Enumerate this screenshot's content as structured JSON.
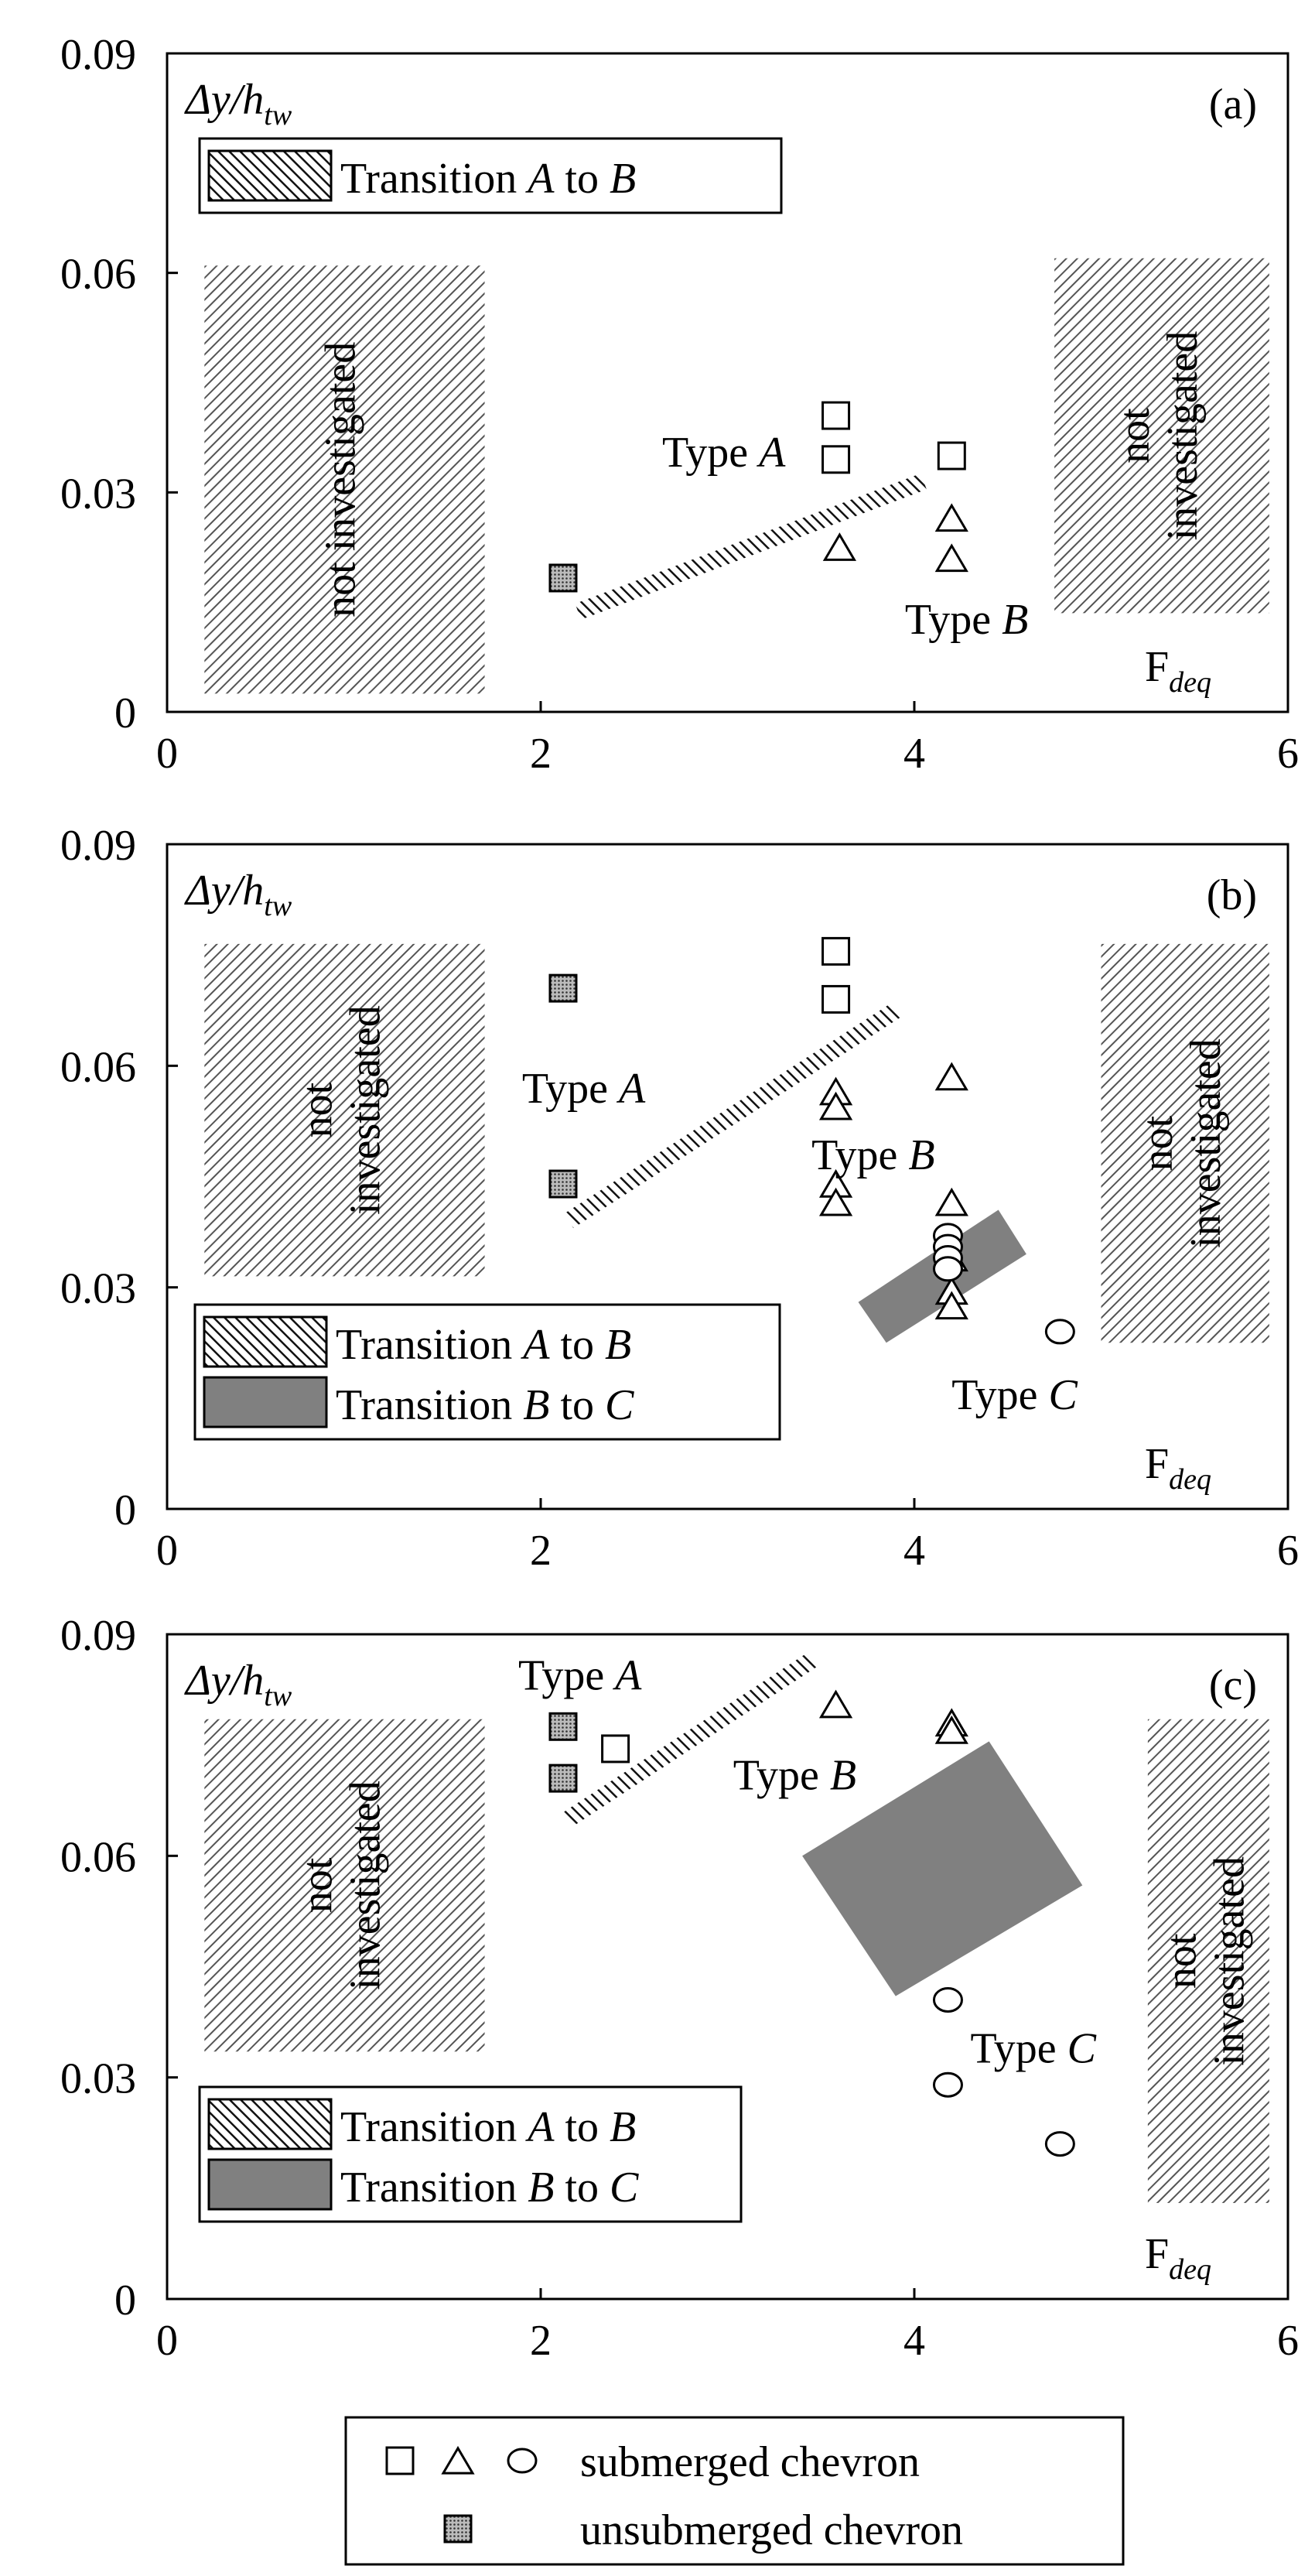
{
  "chart_data": [
    {
      "type": "scatter",
      "panel_label": "(a)",
      "ylabel": {
        "base": "Δy/h",
        "sub": "tw"
      },
      "xlabel": {
        "base": "F",
        "sub": "deq"
      },
      "xlim": [
        0,
        6
      ],
      "ylim": [
        0,
        0.09
      ],
      "xticks": [
        "0",
        "2",
        "4",
        "6"
      ],
      "yticks": [
        "0",
        "0.03",
        "0.06",
        "0.09"
      ],
      "grid": false,
      "legend": [
        {
          "key": "transition_ab",
          "parts": [
            "Transition ",
            "A",
            " to ",
            "B"
          ]
        }
      ],
      "regions": [
        {
          "kind": "not-investigated",
          "label": "not investigated",
          "x": [
            0.2,
            1.7
          ],
          "y": [
            0.0025,
            0.061
          ]
        },
        {
          "kind": "not-investigated",
          "label": "not investigated",
          "x": [
            4.75,
            5.9
          ],
          "y": [
            0.0135,
            0.062
          ]
        }
      ],
      "transitions": [
        {
          "kind": "line",
          "from": [
            2.2,
            0.0137
          ],
          "to": [
            4.05,
            0.0315
          ]
        }
      ],
      "type_labels": [
        {
          "letter": "A",
          "at": [
            2.65,
            0.0335
          ]
        },
        {
          "letter": "B",
          "at": [
            3.95,
            0.0107
          ]
        }
      ],
      "series": [
        {
          "name": "submerged chevron",
          "marker": "square",
          "points": [
            [
              3.58,
              0.0405
            ],
            [
              3.58,
              0.0345
            ],
            [
              4.2,
              0.035
            ]
          ]
        },
        {
          "name": "submerged chevron",
          "marker": "triangle",
          "points": [
            [
              3.6,
              0.0225
            ],
            [
              4.2,
              0.0265
            ],
            [
              4.2,
              0.021
            ]
          ]
        },
        {
          "name": "unsubmerged chevron",
          "marker": "square-filled",
          "points": [
            [
              2.12,
              0.0183
            ]
          ]
        }
      ]
    },
    {
      "type": "scatter",
      "panel_label": "(b)",
      "ylabel": {
        "base": "Δy/h",
        "sub": "tw"
      },
      "xlabel": {
        "base": "F",
        "sub": "deq"
      },
      "xlim": [
        0,
        6
      ],
      "ylim": [
        0,
        0.09
      ],
      "xticks": [
        "0",
        "2",
        "4",
        "6"
      ],
      "yticks": [
        "0",
        "0.03",
        "0.06",
        "0.09"
      ],
      "grid": false,
      "legend": [
        {
          "key": "transition_ab",
          "parts": [
            "Transition ",
            "A",
            " to ",
            "B"
          ]
        },
        {
          "key": "transition_bc",
          "parts": [
            "Transition ",
            "B",
            " to ",
            "C"
          ]
        }
      ],
      "regions": [
        {
          "kind": "not-investigated",
          "label": "not investigated",
          "x": [
            0.2,
            1.7
          ],
          "y": [
            0.0315,
            0.0765
          ]
        },
        {
          "kind": "not-investigated",
          "label": "not investigated",
          "x": [
            5.0,
            5.9
          ],
          "y": [
            0.0225,
            0.0765
          ]
        }
      ],
      "transitions": [
        {
          "kind": "line",
          "from": [
            2.15,
            0.039
          ],
          "to": [
            3.9,
            0.0675
          ]
        },
        {
          "kind": "band",
          "corners": [
            [
              3.7,
              0.028
            ],
            [
              4.45,
              0.0405
            ],
            [
              4.6,
              0.0345
            ],
            [
              3.85,
              0.0225
            ]
          ]
        }
      ],
      "type_labels": [
        {
          "letter": "A",
          "at": [
            1.9,
            0.055
          ]
        },
        {
          "letter": "B",
          "at": [
            3.45,
            0.046
          ]
        },
        {
          "letter": "C",
          "at": [
            4.2,
            0.0135
          ]
        }
      ],
      "series": [
        {
          "name": "submerged chevron",
          "marker": "square",
          "points": [
            [
              3.58,
              0.0755
            ],
            [
              3.58,
              0.069
            ]
          ]
        },
        {
          "name": "submerged chevron",
          "marker": "triangle",
          "points": [
            [
              3.58,
              0.0565
            ],
            [
              3.58,
              0.0545
            ],
            [
              3.58,
              0.044
            ],
            [
              3.58,
              0.0415
            ],
            [
              4.2,
              0.0585
            ],
            [
              4.2,
              0.0415
            ],
            [
              4.2,
              0.034
            ],
            [
              4.2,
              0.0295
            ],
            [
              4.2,
              0.0275
            ]
          ]
        },
        {
          "name": "submerged chevron",
          "marker": "circle",
          "points": [
            [
              4.18,
              0.037
            ],
            [
              4.18,
              0.0355
            ],
            [
              4.18,
              0.034
            ],
            [
              4.18,
              0.0325
            ],
            [
              4.78,
              0.024
            ]
          ]
        },
        {
          "name": "unsubmerged chevron",
          "marker": "square-filled",
          "points": [
            [
              2.12,
              0.0705
            ],
            [
              2.12,
              0.044
            ]
          ]
        }
      ]
    },
    {
      "type": "scatter",
      "panel_label": "(c)",
      "ylabel": {
        "base": "Δy/h",
        "sub": "tw"
      },
      "xlabel": {
        "base": "F",
        "sub": "deq"
      },
      "xlim": [
        0,
        6
      ],
      "ylim": [
        0,
        0.09
      ],
      "xticks": [
        "0",
        "2",
        "4",
        "6"
      ],
      "yticks": [
        "0",
        "0.03",
        "0.06",
        "0.09"
      ],
      "grid": false,
      "legend": [
        {
          "key": "transition_ab",
          "parts": [
            "Transition ",
            "A",
            " to ",
            "B"
          ]
        },
        {
          "key": "transition_bc",
          "parts": [
            "Transition ",
            "B",
            " to ",
            "C"
          ]
        }
      ],
      "regions": [
        {
          "kind": "not-investigated",
          "label": "not investigated",
          "x": [
            0.2,
            1.7
          ],
          "y": [
            0.0335,
            0.0785
          ]
        },
        {
          "kind": "not-investigated",
          "label": "not investigated",
          "x": [
            5.25,
            5.9
          ],
          "y": [
            0.013,
            0.0785
          ]
        }
      ],
      "transitions": [
        {
          "kind": "line",
          "from": [
            2.15,
            0.065
          ],
          "to": [
            3.45,
            0.0865
          ]
        },
        {
          "kind": "band",
          "corners": [
            [
              3.4,
              0.06
            ],
            [
              4.4,
              0.0755
            ],
            [
              4.9,
              0.056
            ],
            [
              3.9,
              0.041
            ]
          ]
        }
      ],
      "type_labels": [
        {
          "letter": "A",
          "at": [
            1.88,
            0.0825
          ]
        },
        {
          "letter": "B",
          "at": [
            3.03,
            0.069
          ]
        },
        {
          "letter": "C",
          "at": [
            4.3,
            0.032
          ]
        }
      ],
      "series": [
        {
          "name": "submerged chevron",
          "marker": "square",
          "points": [
            [
              2.4,
              0.0745
            ]
          ]
        },
        {
          "name": "submerged chevron",
          "marker": "triangle",
          "points": [
            [
              3.58,
              0.0805
            ],
            [
              4.2,
              0.078
            ],
            [
              4.2,
              0.077
            ]
          ]
        },
        {
          "name": "submerged chevron",
          "marker": "circle",
          "points": [
            [
              4.18,
              0.0405
            ],
            [
              4.18,
              0.029
            ],
            [
              4.78,
              0.021
            ]
          ]
        },
        {
          "name": "unsubmerged chevron",
          "marker": "square-filled",
          "points": [
            [
              2.12,
              0.0775
            ],
            [
              2.12,
              0.0705
            ]
          ]
        }
      ]
    }
  ],
  "bottom_legend": {
    "submerged_label": "submerged chevron",
    "unsubmerged_label": "unsubmerged chevron",
    "submerged_markers": [
      "square",
      "triangle",
      "circle"
    ],
    "unsubmerged_marker": "square-filled"
  }
}
